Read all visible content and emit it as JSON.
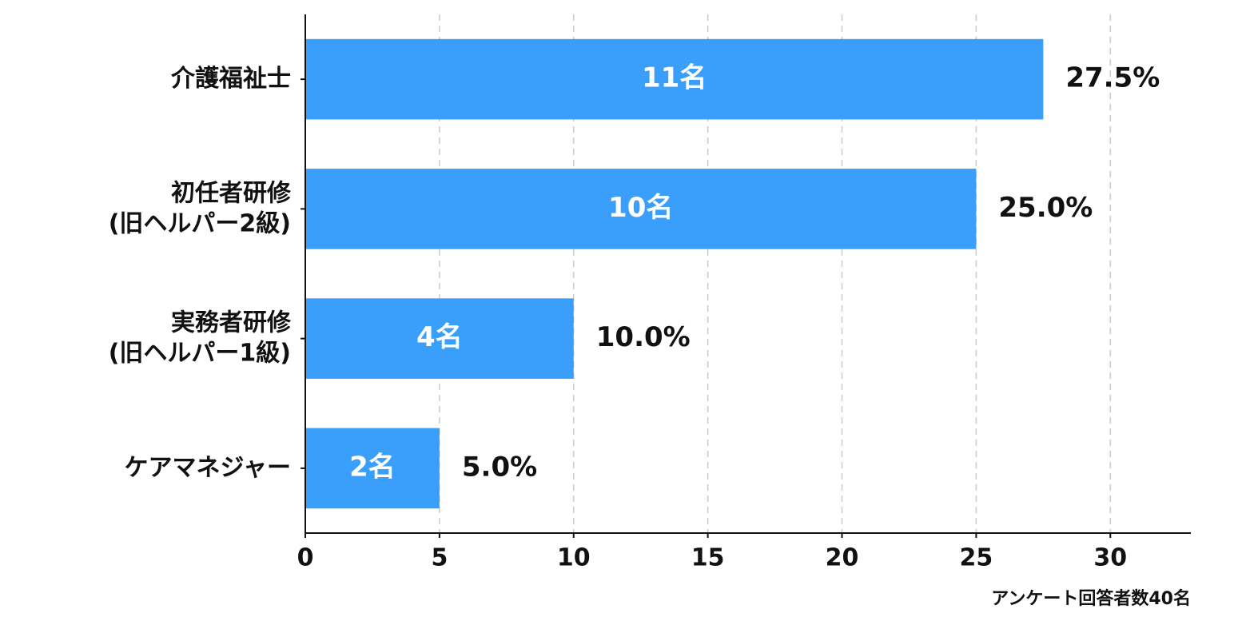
{
  "chart_data": {
    "type": "barh",
    "categories": [
      "介護福祉士",
      "初任者研修\n(旧ヘルパー2級)",
      "実務者研修\n(旧ヘルパー1級)",
      "ケアマネジャー"
    ],
    "values": [
      27.5,
      25.0,
      10.0,
      5.0
    ],
    "value_labels": [
      "27.5%",
      "25.0%",
      "10.0%",
      "5.0%"
    ],
    "count_labels": [
      "11名",
      "10名",
      "4名",
      "2名"
    ],
    "color": "#3a9ffa",
    "xlim": [
      0,
      33
    ],
    "xticks": [
      0,
      5,
      10,
      15,
      20,
      25,
      30
    ],
    "grid": true,
    "note": "アンケート回答者数40名"
  }
}
